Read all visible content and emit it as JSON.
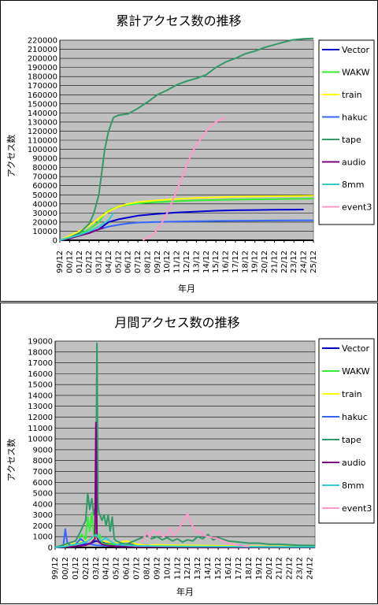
{
  "chart_data": [
    {
      "type": "line",
      "title": "累計アクセス数の推移",
      "xlabel": "年月",
      "ylabel": "アクセス数",
      "ylim": [
        0,
        220000
      ],
      "yticks": [
        0,
        10000,
        20000,
        30000,
        40000,
        50000,
        60000,
        70000,
        80000,
        90000,
        100000,
        110000,
        120000,
        130000,
        140000,
        150000,
        160000,
        170000,
        180000,
        190000,
        200000,
        210000,
        220000
      ],
      "x_ticks": [
        "99/12",
        "00/12",
        "01/12",
        "02/12",
        "03/12",
        "04/12",
        "05/12",
        "06/12",
        "07/12",
        "08/12",
        "09/12",
        "10/12",
        "11/12",
        "12/12",
        "13/12",
        "14/12",
        "15/12",
        "16/12",
        "17/12",
        "18/12",
        "19/12",
        "20/12",
        "21/12",
        "22/12",
        "23/12",
        "24/12",
        "25/12"
      ],
      "xlim": [
        0,
        26
      ],
      "grid": true,
      "legend_position": "right",
      "series": [
        {
          "name": "Vector",
          "color": "#0000cc",
          "x": [
            0,
            1,
            2,
            3,
            4,
            5,
            6,
            7,
            8,
            10,
            12,
            14,
            16,
            18,
            20,
            22,
            24,
            25
          ],
          "y": [
            0,
            2000,
            5000,
            8000,
            12000,
            20000,
            23000,
            25000,
            27000,
            29000,
            30500,
            31500,
            32500,
            33000,
            33300,
            33500,
            33700,
            33800
          ]
        },
        {
          "name": "WAKW",
          "color": "#33ee33",
          "x": [
            0,
            1,
            2,
            3,
            4,
            4.5,
            5,
            6,
            7,
            8,
            10,
            12,
            14,
            16,
            18,
            20,
            22,
            24,
            26
          ],
          "y": [
            0,
            3000,
            7000,
            12000,
            20000,
            28000,
            33000,
            37000,
            39000,
            40500,
            42000,
            43000,
            43800,
            44300,
            44700,
            45000,
            45300,
            45600,
            45800
          ]
        },
        {
          "name": "train",
          "color": "#ffff00",
          "x": [
            0,
            1,
            2,
            3,
            4,
            5,
            6,
            7,
            8,
            10,
            12,
            14,
            16,
            18,
            20,
            22,
            24,
            26
          ],
          "y": [
            0,
            5000,
            10000,
            16000,
            24000,
            32000,
            37000,
            40000,
            42000,
            44000,
            45500,
            46500,
            47200,
            47800,
            48200,
            48500,
            48800,
            49000
          ]
        },
        {
          "name": "hakuc",
          "color": "#3366ff",
          "x": [
            0,
            1,
            2,
            3,
            4,
            5,
            6,
            7,
            8,
            10,
            12,
            14,
            16,
            18,
            20,
            22,
            24,
            26
          ],
          "y": [
            0,
            3000,
            6000,
            9000,
            12000,
            15000,
            17000,
            18500,
            19500,
            20200,
            20600,
            20900,
            21200,
            21400,
            21600,
            21700,
            21800,
            21900
          ]
        },
        {
          "name": "tape",
          "color": "#339966",
          "x": [
            0,
            1,
            2,
            3,
            3.5,
            4,
            4.3,
            4.6,
            5,
            5.5,
            6,
            7,
            8,
            9,
            10,
            11,
            12,
            13,
            14,
            15,
            16,
            17,
            18,
            19,
            20,
            21,
            22,
            23,
            24,
            25,
            26
          ],
          "y": [
            0,
            3000,
            8000,
            18000,
            30000,
            50000,
            75000,
            100000,
            120000,
            135000,
            137500,
            139000,
            145000,
            152000,
            160000,
            165000,
            171000,
            175000,
            178000,
            182000,
            190000,
            196000,
            200000,
            205000,
            208000,
            212000,
            215000,
            218000,
            220500,
            221500,
            222000
          ]
        },
        {
          "name": "audio",
          "color": "#800080",
          "x": [
            0,
            1,
            2,
            3,
            3.5,
            4,
            4.5
          ],
          "y": [
            0,
            2000,
            5000,
            8000,
            10000,
            12000,
            14000
          ]
        },
        {
          "name": "8mm",
          "color": "#33cccc",
          "x": [
            0,
            1,
            2,
            3,
            4,
            5,
            5.5
          ],
          "y": [
            0,
            3000,
            6000,
            10000,
            15000,
            22000,
            30000
          ]
        },
        {
          "name": "event3",
          "color": "#ff99cc",
          "x": [
            8.5,
            9,
            9.5,
            10,
            10.5,
            11,
            11.5,
            12,
            12.5,
            13,
            13.5,
            14,
            14.5,
            15,
            15.5,
            16,
            16.5,
            17
          ],
          "y": [
            0,
            3000,
            6000,
            12000,
            20000,
            30000,
            42000,
            55000,
            68000,
            82000,
            95000,
            105000,
            112000,
            120000,
            126000,
            130000,
            133000,
            135000
          ]
        }
      ]
    },
    {
      "type": "line",
      "title": "月間アクセス数の推移",
      "xlabel": "年月",
      "ylabel": "アクセス数",
      "ylim": [
        0,
        19000
      ],
      "yticks": [
        0,
        1000,
        2000,
        3000,
        4000,
        5000,
        6000,
        7000,
        8000,
        9000,
        10000,
        11000,
        12000,
        13000,
        14000,
        15000,
        16000,
        17000,
        18000,
        19000
      ],
      "x_ticks": [
        "99/12",
        "00/12",
        "01/12",
        "02/12",
        "03/12",
        "04/12",
        "05/12",
        "06/12",
        "07/12",
        "08/12",
        "09/12",
        "10/12",
        "11/12",
        "12/12",
        "13/12",
        "14/12",
        "15/12",
        "16/12",
        "17/12",
        "18/12",
        "19/12",
        "20/12",
        "21/12",
        "22/12",
        "23/12",
        "24/12"
      ],
      "xlim": [
        0,
        25.5
      ],
      "grid": true,
      "legend_position": "right",
      "series": [
        {
          "name": "Vector",
          "color": "#0000cc",
          "x": [
            0,
            1,
            2,
            2.5,
            3,
            3.5,
            4,
            4.5,
            5,
            6,
            8,
            10,
            12,
            14,
            16,
            18,
            20,
            22,
            24,
            25.5
          ],
          "y": [
            0,
            50,
            100,
            200,
            300,
            400,
            600,
            500,
            400,
            300,
            250,
            200,
            180,
            150,
            130,
            120,
            100,
            90,
            80,
            70
          ]
        },
        {
          "name": "WAKW",
          "color": "#33ee33",
          "x": [
            0,
            1,
            2,
            2.3,
            2.6,
            3,
            3.2,
            3.4,
            3.6,
            3.8,
            4,
            4.2,
            4.4,
            4.6,
            5,
            6,
            8,
            10,
            12,
            14,
            16,
            18,
            20,
            22,
            24,
            25.5
          ],
          "y": [
            0,
            100,
            200,
            500,
            1200,
            800,
            2800,
            1500,
            3200,
            1000,
            2500,
            600,
            1200,
            400,
            300,
            250,
            200,
            180,
            150,
            130,
            110,
            100,
            90,
            80,
            70,
            60
          ]
        },
        {
          "name": "train",
          "color": "#ffff00",
          "x": [
            0,
            1,
            2,
            3,
            3.5,
            4,
            4.5,
            5,
            6,
            7,
            8,
            9,
            10,
            12,
            14,
            16,
            18,
            20,
            22,
            24,
            25.5
          ],
          "y": [
            0,
            200,
            400,
            600,
            800,
            1000,
            700,
            500,
            400,
            600,
            300,
            200,
            250,
            200,
            180,
            150,
            130,
            110,
            100,
            90,
            80
          ]
        },
        {
          "name": "hakuc",
          "color": "#3366ff",
          "x": [
            0,
            0.8,
            1,
            1.2,
            1.5,
            2,
            2.5,
            3,
            3.5,
            4,
            5,
            6,
            8,
            10,
            12,
            14,
            16,
            18,
            20,
            22,
            24,
            25.5
          ],
          "y": [
            0,
            200,
            1700,
            400,
            200,
            300,
            800,
            400,
            300,
            200,
            150,
            120,
            100,
            90,
            80,
            70,
            60,
            50,
            50,
            40,
            40,
            40
          ]
        },
        {
          "name": "tape",
          "color": "#339966",
          "x": [
            0,
            1,
            2,
            2.5,
            3,
            3.2,
            3.4,
            3.6,
            3.8,
            4,
            4.1,
            4.2,
            4.3,
            4.4,
            4.6,
            4.8,
            5,
            5.2,
            5.4,
            5.6,
            5.8,
            6,
            6.5,
            7,
            7.5,
            8,
            8.5,
            9,
            9.5,
            10,
            10.5,
            11,
            11.5,
            12,
            12.5,
            13,
            13.5,
            14,
            14.5,
            15,
            15.5,
            16,
            17,
            18,
            19,
            20,
            21,
            22,
            23,
            24,
            25.5
          ],
          "y": [
            0,
            300,
            600,
            1500,
            2500,
            5000,
            3500,
            4500,
            3000,
            4000,
            18800,
            4000,
            3200,
            3000,
            2500,
            3000,
            2000,
            3000,
            1500,
            2800,
            800,
            600,
            400,
            300,
            500,
            700,
            900,
            1100,
            800,
            1000,
            700,
            900,
            600,
            800,
            500,
            700,
            600,
            1000,
            800,
            1200,
            700,
            900,
            600,
            500,
            400,
            400,
            300,
            300,
            250,
            200,
            180
          ]
        },
        {
          "name": "audio",
          "color": "#800080",
          "x": [
            0,
            1,
            2,
            3,
            3.5,
            3.9,
            4,
            4.1,
            4.3,
            4.6,
            5,
            5.5,
            6,
            7,
            8,
            10,
            12,
            14,
            16,
            18,
            20,
            22,
            24,
            25.5
          ],
          "y": [
            0,
            50,
            100,
            200,
            400,
            800,
            11500,
            1000,
            500,
            300,
            200,
            150,
            100,
            80,
            60,
            50,
            40,
            30,
            30,
            20,
            20,
            20,
            20,
            20
          ]
        },
        {
          "name": "8mm",
          "color": "#33cccc",
          "x": [
            0,
            1,
            2,
            3,
            3.5,
            4,
            4.5,
            5,
            5.5,
            6,
            7,
            8,
            10,
            12,
            14,
            16,
            18,
            20,
            22,
            24,
            25.5
          ],
          "y": [
            0,
            100,
            300,
            500,
            800,
            1200,
            600,
            900,
            500,
            300,
            200,
            150,
            120,
            100,
            90,
            80,
            70,
            60,
            50,
            40,
            40
          ]
        },
        {
          "name": "event3",
          "color": "#ff99cc",
          "x": [
            8.5,
            9,
            9.3,
            9.6,
            10,
            10.3,
            10.6,
            11,
            11.3,
            11.6,
            12,
            12.3,
            12.6,
            13,
            13.3,
            13.6,
            14,
            14.3,
            14.6,
            15,
            15.5,
            16,
            16.5,
            17,
            17.5,
            18,
            18.5,
            19
          ],
          "y": [
            500,
            1400,
            900,
            1600,
            1200,
            1500,
            1000,
            1300,
            1800,
            1100,
            1500,
            2000,
            2500,
            3100,
            2300,
            1800,
            1300,
            1500,
            1100,
            1000,
            900,
            800,
            600,
            400,
            300,
            200,
            150,
            100
          ]
        }
      ]
    }
  ]
}
